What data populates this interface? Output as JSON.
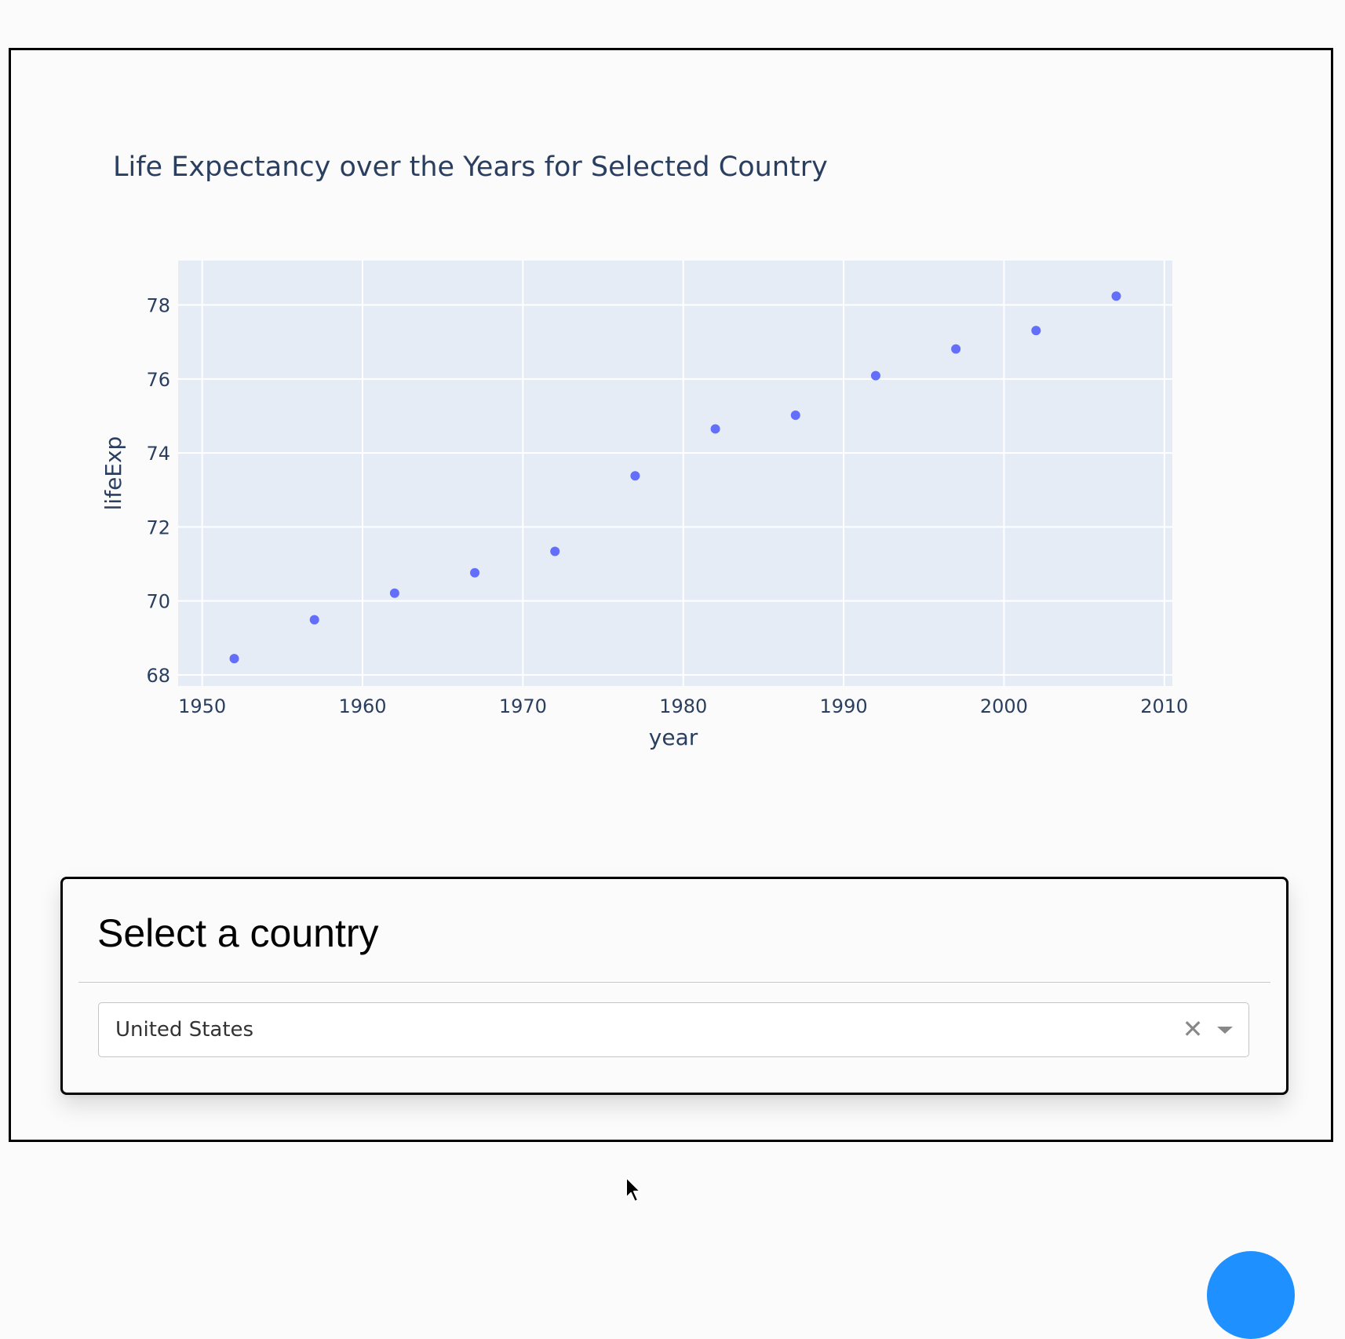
{
  "chart_data": {
    "type": "scatter",
    "title": "Life Expectancy over the Years for Selected Country",
    "xlabel": "year",
    "ylabel": "lifeExp",
    "x": [
      1952,
      1957,
      1962,
      1967,
      1972,
      1977,
      1982,
      1987,
      1992,
      1997,
      2002,
      2007
    ],
    "y": [
      68.44,
      69.49,
      70.21,
      70.76,
      71.34,
      73.38,
      74.65,
      75.02,
      76.09,
      76.81,
      77.31,
      78.24
    ],
    "xlim": [
      1948.5,
      2010.5
    ],
    "ylim": [
      67.7,
      79.2
    ],
    "xticks": [
      1950,
      1960,
      1970,
      1980,
      1990,
      2000,
      2010
    ],
    "yticks": [
      68,
      70,
      72,
      74,
      76,
      78
    ],
    "grid": true,
    "marker_color": "#636efa",
    "plot_bg": "#e5ecf6",
    "text_color": "#2a3f5f"
  },
  "selector": {
    "title": "Select a country",
    "selected_value": "United States",
    "clear_symbol": "✕"
  }
}
